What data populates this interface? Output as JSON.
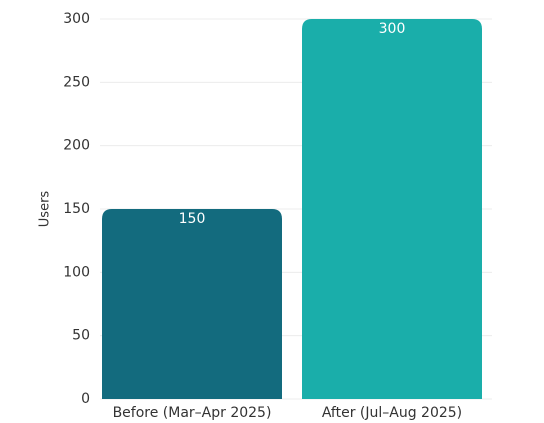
{
  "chart_data": {
    "type": "bar",
    "y_label": "Users",
    "categories": [
      "Before (Mar–Apr 2025)",
      "After (Jul–Aug 2025)"
    ],
    "values": [
      150,
      300
    ],
    "colors": [
      "#136b7e",
      "#1aaeaa"
    ],
    "ylim": [
      0,
      300
    ],
    "yticks": [
      0,
      50,
      100,
      150,
      200,
      250,
      300
    ],
    "grid": true
  }
}
